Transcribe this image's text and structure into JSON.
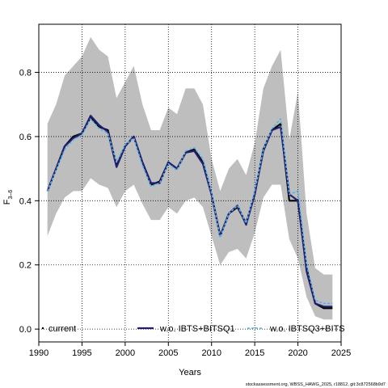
{
  "chart_data": {
    "type": "line",
    "xlabel": "Years",
    "ylabel_main": "F",
    "ylabel_sub": "3–6",
    "xlim": [
      1990,
      2025
    ],
    "ylim": [
      -0.04,
      0.95
    ],
    "x_ticks": [
      1990,
      1995,
      2000,
      2005,
      2010,
      2015,
      2020,
      2025
    ],
    "y_ticks": [
      0.0,
      0.2,
      0.4,
      0.6,
      0.8
    ],
    "y_tick_labels": [
      "0.0",
      "0.2",
      "0.4",
      "0.6",
      "0.8"
    ],
    "grid": true,
    "legend_position": "bottom",
    "footer": "stockassessment.org, WBSS_HAWG_2025, r18812, git:3c872568b9d7",
    "band": {
      "x": [
        1991,
        1992,
        1993,
        1994,
        1995,
        1996,
        1997,
        1998,
        1999,
        2000,
        2001,
        2002,
        2003,
        2004,
        2005,
        2006,
        2007,
        2008,
        2009,
        2010,
        2011,
        2012,
        2013,
        2014,
        2015,
        2016,
        2017,
        2018,
        2019,
        2020,
        2021,
        2022,
        2023,
        2024
      ],
      "lower": [
        0.29,
        0.36,
        0.41,
        0.43,
        0.43,
        0.47,
        0.45,
        0.44,
        0.38,
        0.43,
        0.45,
        0.39,
        0.34,
        0.34,
        0.38,
        0.36,
        0.4,
        0.41,
        0.38,
        0.29,
        0.2,
        0.24,
        0.25,
        0.22,
        0.3,
        0.41,
        0.45,
        0.45,
        0.28,
        0.22,
        0.1,
        0.04,
        0.03,
        0.03
      ],
      "upper": [
        0.64,
        0.7,
        0.79,
        0.82,
        0.85,
        0.91,
        0.87,
        0.85,
        0.72,
        0.77,
        0.82,
        0.7,
        0.62,
        0.62,
        0.69,
        0.67,
        0.75,
        0.75,
        0.7,
        0.53,
        0.43,
        0.5,
        0.53,
        0.48,
        0.58,
        0.75,
        0.82,
        0.87,
        0.59,
        0.74,
        0.36,
        0.19,
        0.17,
        0.17
      ]
    },
    "series": [
      {
        "name": "current",
        "color": "#000000",
        "dash": "none",
        "x": [
          1991,
          1992,
          1993,
          1994,
          1995,
          1996,
          1997,
          1998,
          1999,
          2000,
          2001,
          2002,
          2003,
          2004,
          2005,
          2006,
          2007,
          2008,
          2009,
          2010,
          2011,
          2012,
          2013,
          2014,
          2015,
          2016,
          2017,
          2018,
          2019,
          2020,
          2021,
          2022,
          2023,
          2024
        ],
        "values": [
          0.43,
          0.5,
          0.57,
          0.6,
          0.61,
          0.66,
          0.63,
          0.62,
          0.51,
          0.57,
          0.6,
          0.52,
          0.45,
          0.46,
          0.52,
          0.5,
          0.55,
          0.56,
          0.52,
          0.42,
          0.29,
          0.36,
          0.38,
          0.33,
          0.42,
          0.56,
          0.62,
          0.64,
          0.4,
          0.4,
          0.19,
          0.08,
          0.065,
          0.065
        ]
      },
      {
        "name": "w.o. IBTS+BITSQ1",
        "color": "#241e6e",
        "dash": "none",
        "x": [
          1991,
          1992,
          1993,
          1994,
          1995,
          1996,
          1997,
          1998,
          1999,
          2000,
          2001,
          2002,
          2003,
          2004,
          2005,
          2006,
          2007,
          2008,
          2009,
          2010,
          2011,
          2012,
          2013,
          2014,
          2015,
          2016,
          2017,
          2018,
          2019,
          2020,
          2021,
          2022,
          2023,
          2024
        ],
        "values": [
          0.43,
          0.5,
          0.57,
          0.595,
          0.61,
          0.665,
          0.635,
          0.615,
          0.505,
          0.57,
          0.6,
          0.52,
          0.455,
          0.455,
          0.52,
          0.5,
          0.55,
          0.555,
          0.515,
          0.42,
          0.29,
          0.36,
          0.385,
          0.325,
          0.42,
          0.555,
          0.62,
          0.63,
          0.42,
          0.4,
          0.18,
          0.08,
          0.07,
          0.07
        ]
      },
      {
        "name": "w.o. IBTSQ3+BITS",
        "color": "#4fb3e8",
        "dash": "3,2",
        "x": [
          1991,
          1992,
          1993,
          1994,
          1995,
          1996,
          1997,
          1998,
          1999,
          2000,
          2001,
          2002,
          2003,
          2004,
          2005,
          2006,
          2007,
          2008,
          2009,
          2010,
          2011,
          2012,
          2013,
          2014,
          2015,
          2016,
          2017,
          2018,
          2019,
          2020,
          2021,
          2022,
          2023,
          2024
        ],
        "values": [
          0.43,
          0.495,
          0.56,
          0.59,
          0.605,
          0.655,
          0.625,
          0.61,
          0.52,
          0.575,
          0.595,
          0.51,
          0.445,
          0.455,
          0.515,
          0.495,
          0.555,
          0.565,
          0.53,
          0.425,
          0.285,
          0.36,
          0.385,
          0.33,
          0.43,
          0.56,
          0.625,
          0.655,
          0.42,
          0.43,
          0.2,
          0.09,
          0.08,
          0.08
        ]
      }
    ]
  }
}
